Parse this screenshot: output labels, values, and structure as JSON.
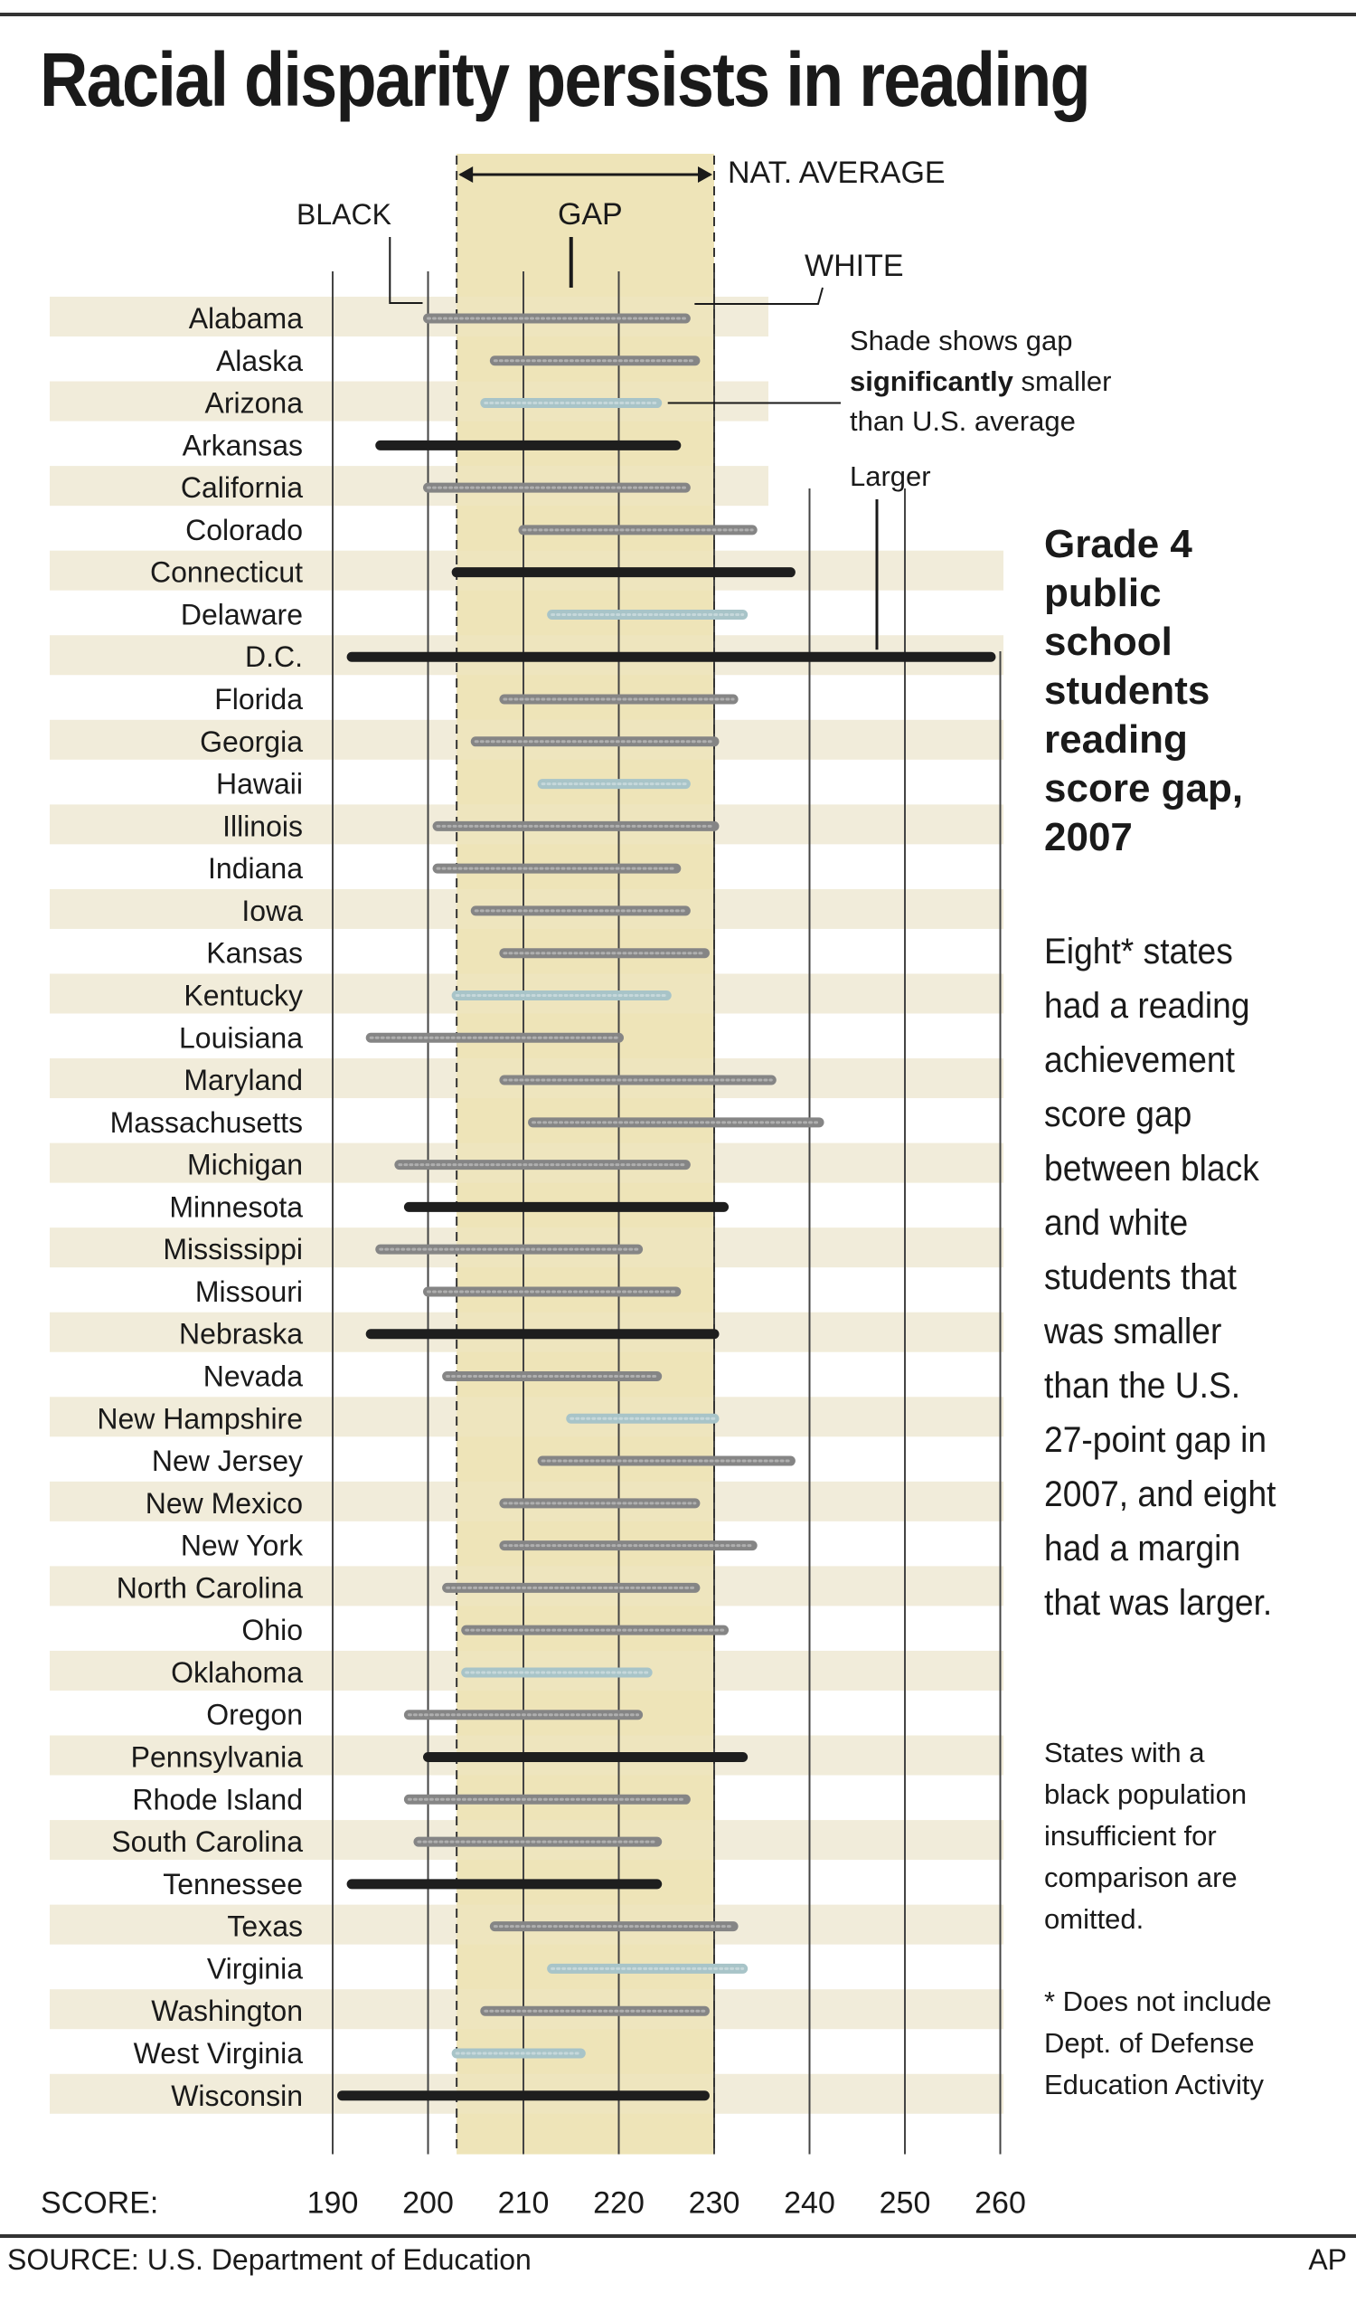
{
  "title": "Racial disparity persists in reading",
  "colors": {
    "gap_band": "#eee4b8",
    "row_stripe": "#efe9d4",
    "grid": "#444444",
    "bar_significantly_smaller": "#a8c4c8",
    "bar_not_significant": "#858585",
    "bar_larger": "#1e1e1e"
  },
  "legend": {
    "black": "BLACK",
    "gap": "GAP",
    "white": "WHITE",
    "nat_average": "NAT. AVERAGE",
    "smaller_line1": "Shade shows gap",
    "smaller_line2_bold": "significantly",
    "smaller_line2_rest": " smaller",
    "smaller_line3": "than U.S. average",
    "larger": "Larger"
  },
  "side_title": "Grade 4\npublic\nschool\nstudents\nreading\nscore gap,\n2007",
  "side_body": "Eight* states\nhad a reading\nachievement\nscore gap\nbetween black\nand white\nstudents that\nwas smaller\nthan the U.S.\n27-point gap in\n2007, and eight\nhad a margin\nthat was larger.",
  "side_note": "States with a\nblack population\ninsufficient for\ncomparison are\nomitted.",
  "side_footnote": "* Does not include\nDept. of Defense\nEducation Activity",
  "source": "SOURCE: U.S. Department of Education",
  "credit": "AP",
  "chart_data": {
    "type": "dumbbell",
    "xlabel": "SCORE:",
    "xlim": [
      190,
      260
    ],
    "xticks": [
      190,
      200,
      210,
      220,
      230,
      240,
      250,
      260
    ],
    "national_average": {
      "black": 203,
      "white": 230
    },
    "series_keys": {
      "black": "BLACK",
      "white": "WHITE"
    },
    "states": [
      {
        "name": "Alabama",
        "black": 200,
        "white": 227,
        "gap_status": "not_significant"
      },
      {
        "name": "Alaska",
        "black": 207,
        "white": 228,
        "gap_status": "not_significant"
      },
      {
        "name": "Arizona",
        "black": 206,
        "white": 224,
        "gap_status": "smaller"
      },
      {
        "name": "Arkansas",
        "black": 195,
        "white": 226,
        "gap_status": "larger"
      },
      {
        "name": "California",
        "black": 200,
        "white": 227,
        "gap_status": "not_significant"
      },
      {
        "name": "Colorado",
        "black": 210,
        "white": 234,
        "gap_status": "not_significant"
      },
      {
        "name": "Connecticut",
        "black": 203,
        "white": 238,
        "gap_status": "larger"
      },
      {
        "name": "Delaware",
        "black": 213,
        "white": 233,
        "gap_status": "smaller"
      },
      {
        "name": "D.C.",
        "black": 192,
        "white": 259,
        "gap_status": "larger"
      },
      {
        "name": "Florida",
        "black": 208,
        "white": 232,
        "gap_status": "not_significant"
      },
      {
        "name": "Georgia",
        "black": 205,
        "white": 230,
        "gap_status": "not_significant"
      },
      {
        "name": "Hawaii",
        "black": 212,
        "white": 227,
        "gap_status": "smaller"
      },
      {
        "name": "Illinois",
        "black": 201,
        "white": 230,
        "gap_status": "not_significant"
      },
      {
        "name": "Indiana",
        "black": 201,
        "white": 226,
        "gap_status": "not_significant"
      },
      {
        "name": "Iowa",
        "black": 205,
        "white": 227,
        "gap_status": "not_significant"
      },
      {
        "name": "Kansas",
        "black": 208,
        "white": 229,
        "gap_status": "not_significant"
      },
      {
        "name": "Kentucky",
        "black": 203,
        "white": 225,
        "gap_status": "smaller"
      },
      {
        "name": "Louisiana",
        "black": 194,
        "white": 220,
        "gap_status": "not_significant"
      },
      {
        "name": "Maryland",
        "black": 208,
        "white": 236,
        "gap_status": "not_significant"
      },
      {
        "name": "Massachusetts",
        "black": 211,
        "white": 241,
        "gap_status": "not_significant"
      },
      {
        "name": "Michigan",
        "black": 197,
        "white": 227,
        "gap_status": "not_significant"
      },
      {
        "name": "Minnesota",
        "black": 198,
        "white": 231,
        "gap_status": "larger"
      },
      {
        "name": "Mississippi",
        "black": 195,
        "white": 222,
        "gap_status": "not_significant"
      },
      {
        "name": "Missouri",
        "black": 200,
        "white": 226,
        "gap_status": "not_significant"
      },
      {
        "name": "Nebraska",
        "black": 194,
        "white": 230,
        "gap_status": "larger"
      },
      {
        "name": "Nevada",
        "black": 202,
        "white": 224,
        "gap_status": "not_significant"
      },
      {
        "name": "New Hampshire",
        "black": 215,
        "white": 230,
        "gap_status": "smaller"
      },
      {
        "name": "New Jersey",
        "black": 212,
        "white": 238,
        "gap_status": "not_significant"
      },
      {
        "name": "New Mexico",
        "black": 208,
        "white": 228,
        "gap_status": "not_significant"
      },
      {
        "name": "New York",
        "black": 208,
        "white": 234,
        "gap_status": "not_significant"
      },
      {
        "name": "North Carolina",
        "black": 202,
        "white": 228,
        "gap_status": "not_significant"
      },
      {
        "name": "Ohio",
        "black": 204,
        "white": 231,
        "gap_status": "not_significant"
      },
      {
        "name": "Oklahoma",
        "black": 204,
        "white": 223,
        "gap_status": "smaller"
      },
      {
        "name": "Oregon",
        "black": 198,
        "white": 222,
        "gap_status": "not_significant"
      },
      {
        "name": "Pennsylvania",
        "black": 200,
        "white": 233,
        "gap_status": "larger"
      },
      {
        "name": "Rhode Island",
        "black": 198,
        "white": 227,
        "gap_status": "not_significant"
      },
      {
        "name": "South Carolina",
        "black": 199,
        "white": 224,
        "gap_status": "not_significant"
      },
      {
        "name": "Tennessee",
        "black": 192,
        "white": 224,
        "gap_status": "larger"
      },
      {
        "name": "Texas",
        "black": 207,
        "white": 232,
        "gap_status": "not_significant"
      },
      {
        "name": "Virginia",
        "black": 213,
        "white": 233,
        "gap_status": "smaller"
      },
      {
        "name": "Washington",
        "black": 206,
        "white": 229,
        "gap_status": "not_significant"
      },
      {
        "name": "West Virginia",
        "black": 203,
        "white": 216,
        "gap_status": "smaller"
      },
      {
        "name": "Wisconsin",
        "black": 191,
        "white": 229,
        "gap_status": "larger"
      }
    ]
  }
}
